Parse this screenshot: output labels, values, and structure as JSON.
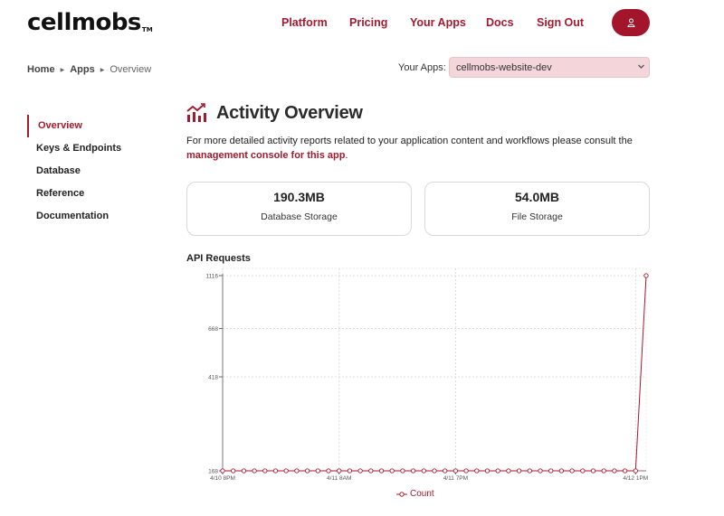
{
  "brand": {
    "logo": "cellmobs",
    "tm": "TM"
  },
  "nav": {
    "items": [
      {
        "label": "Platform"
      },
      {
        "label": "Pricing"
      },
      {
        "label": "Your Apps"
      },
      {
        "label": "Docs"
      },
      {
        "label": "Sign Out"
      }
    ]
  },
  "breadcrumb": {
    "home": "Home",
    "apps": "Apps",
    "current": "Overview"
  },
  "app_select": {
    "label": "Your Apps:",
    "selected": "cellmobs-website-dev"
  },
  "sidebar": {
    "items": [
      {
        "label": "Overview",
        "active": true
      },
      {
        "label": "Keys & Endpoints"
      },
      {
        "label": "Database"
      },
      {
        "label": "Reference"
      },
      {
        "label": "Documentation"
      }
    ]
  },
  "page": {
    "title": "Activity Overview",
    "description": "For more detailed activity reports related to your application content and workflows please consult the",
    "link_text": "management console for this app",
    "link_suffix": "."
  },
  "stats": [
    {
      "value": "190.3MB",
      "label": "Database Storage"
    },
    {
      "value": "54.0MB",
      "label": "File Storage"
    }
  ],
  "api": {
    "title": "API Requests"
  },
  "colors": {
    "accent": "#a41a2e",
    "select_bg": "#f4d6da",
    "card_border": "#d9d9d9"
  },
  "chart_data": {
    "type": "line",
    "y_scale": "log",
    "ylim": [
      168,
      1116
    ],
    "y_ticks": [
      {
        "value": 168,
        "label": "168"
      },
      {
        "value": 418,
        "label": "418"
      },
      {
        "value": 668,
        "label": "668"
      },
      {
        "value": 1116,
        "label": "1116"
      }
    ],
    "x_ticks": [
      {
        "index": 0,
        "label": "4/10 8PM"
      },
      {
        "index": 11,
        "label": "4/11 8AM"
      },
      {
        "index": 22,
        "label": "4/11 7PM"
      },
      {
        "index": 39,
        "label": "4/12 1PM"
      }
    ],
    "series": [
      {
        "name": "Count",
        "values": [
          168,
          168,
          168,
          168,
          168,
          168,
          168,
          168,
          168,
          168,
          168,
          168,
          168,
          168,
          168,
          168,
          168,
          168,
          168,
          168,
          168,
          168,
          168,
          168,
          168,
          168,
          168,
          168,
          168,
          168,
          168,
          168,
          168,
          168,
          168,
          168,
          168,
          168,
          168,
          168,
          1116
        ]
      }
    ],
    "grid": true,
    "legend": "bottom-center"
  }
}
